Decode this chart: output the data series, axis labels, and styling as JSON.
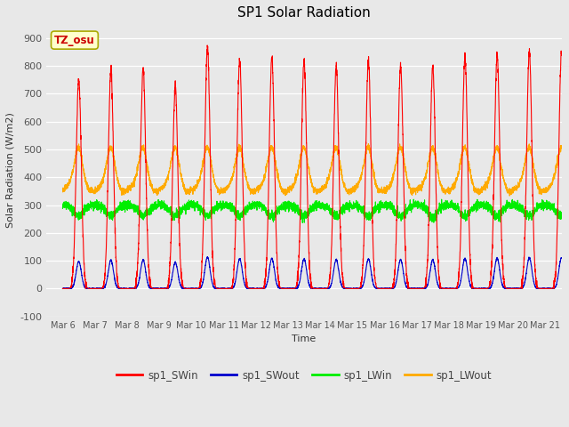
{
  "title": "SP1 Solar Radiation",
  "ylabel": "Solar Radiation (W/m2)",
  "xlabel": "Time",
  "ylim": [
    -100,
    950
  ],
  "yticks": [
    -100,
    0,
    100,
    200,
    300,
    400,
    500,
    600,
    700,
    800,
    900
  ],
  "xtick_labels": [
    "Mar 6",
    "Mar 7",
    "Mar 8",
    "Mar 9",
    "Mar 10",
    "Mar 11",
    "Mar 12",
    "Mar 13",
    "Mar 14",
    "Mar 15",
    "Mar 16",
    "Mar 17",
    "Mar 18",
    "Mar 19",
    "Mar 20",
    "Mar 21"
  ],
  "xtick_positions": [
    6,
    7,
    8,
    9,
    10,
    11,
    12,
    13,
    14,
    15,
    16,
    17,
    18,
    19,
    20,
    21
  ],
  "colors": {
    "sp1_SWin": "#ff0000",
    "sp1_SWout": "#0000cc",
    "sp1_LWin": "#00ee00",
    "sp1_LWout": "#ffaa00"
  },
  "legend_labels": [
    "sp1_SWin",
    "sp1_SWout",
    "sp1_LWin",
    "sp1_LWout"
  ],
  "annotation_text": "TZ_osu",
  "annotation_color": "#cc0000",
  "annotation_bg": "#ffffcc",
  "annotation_edge": "#aaaa00",
  "bg_color": "#e8e8e8",
  "plot_bg_color": "#e8e8e8",
  "grid_color": "#ffffff",
  "linewidth": 0.8,
  "n_days": 16,
  "day_start": 6,
  "SWin_peaks": [
    750,
    780,
    790,
    720,
    870,
    820,
    830,
    820,
    800,
    820,
    800,
    800,
    830,
    840,
    850,
    850
  ],
  "SWout_ratio": 0.13,
  "LWin_base": 300,
  "LWout_base": 370
}
